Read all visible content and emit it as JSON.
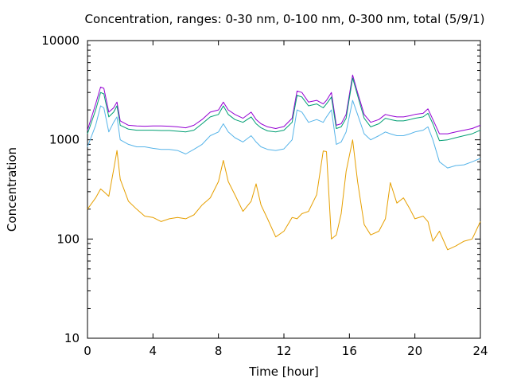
{
  "chart_data": {
    "type": "line",
    "title": "Concentration, ranges: 0-30 nm, 0-100 nm, 0-300 nm, total (5/9/1)",
    "xlabel": "Time [hour]",
    "ylabel": "Concentration",
    "xlim": [
      0,
      24
    ],
    "ylim": [
      10,
      10000
    ],
    "yscale": "log",
    "grid": false,
    "legend": "none",
    "x_ticks": [
      0,
      4,
      8,
      12,
      16,
      20,
      24
    ],
    "x_tick_labels": [
      "0",
      "4",
      "8",
      "12",
      "16",
      "20",
      "24"
    ],
    "y_ticks": [
      10,
      100,
      1000,
      10000
    ],
    "y_tick_labels": [
      "10",
      "100",
      "1000",
      "10000"
    ],
    "x": [
      0,
      0.5,
      0.8,
      1.0,
      1.3,
      1.6,
      1.8,
      2.0,
      2.5,
      3.0,
      3.5,
      4.0,
      4.5,
      5.0,
      5.5,
      6.0,
      6.5,
      7.0,
      7.5,
      8.0,
      8.3,
      8.6,
      9.0,
      9.5,
      10.0,
      10.3,
      10.6,
      11.0,
      11.5,
      12.0,
      12.5,
      12.8,
      13.1,
      13.5,
      14.0,
      14.4,
      14.6,
      14.9,
      15.2,
      15.5,
      15.8,
      16.2,
      16.5,
      16.9,
      17.3,
      17.8,
      18.2,
      18.5,
      18.9,
      19.3,
      19.7,
      20.0,
      20.5,
      20.8,
      21.1,
      21.5,
      22.0,
      22.5,
      23.0,
      23.5,
      24.0
    ],
    "series": [
      {
        "color": "#9400d3",
        "values": [
          1250,
          2300,
          3400,
          3300,
          1900,
          2100,
          2400,
          1550,
          1400,
          1380,
          1370,
          1380,
          1380,
          1370,
          1350,
          1320,
          1400,
          1600,
          1900,
          2000,
          2400,
          2000,
          1800,
          1650,
          1900,
          1600,
          1450,
          1350,
          1300,
          1360,
          1650,
          3100,
          3000,
          2400,
          2500,
          2300,
          2500,
          3000,
          1400,
          1450,
          1800,
          4500,
          3000,
          1800,
          1500,
          1600,
          1800,
          1750,
          1700,
          1700,
          1750,
          1800,
          1850,
          2050,
          1600,
          1150,
          1150,
          1200,
          1250,
          1300,
          1400
        ]
      },
      {
        "color": "#009e73",
        "values": [
          1150,
          2000,
          3000,
          2900,
          1700,
          1900,
          2200,
          1400,
          1280,
          1250,
          1250,
          1250,
          1240,
          1240,
          1220,
          1200,
          1250,
          1450,
          1700,
          1800,
          2200,
          1800,
          1600,
          1500,
          1700,
          1450,
          1320,
          1230,
          1200,
          1250,
          1500,
          2800,
          2700,
          2200,
          2300,
          2100,
          2300,
          2700,
          1300,
          1350,
          1650,
          4200,
          2800,
          1650,
          1350,
          1450,
          1650,
          1600,
          1550,
          1550,
          1600,
          1650,
          1700,
          1850,
          1450,
          980,
          1000,
          1050,
          1100,
          1150,
          1250
        ]
      },
      {
        "color": "#56b4e9",
        "values": [
          850,
          1400,
          2200,
          2100,
          1200,
          1500,
          1700,
          1000,
          900,
          850,
          850,
          820,
          800,
          800,
          780,
          720,
          800,
          900,
          1100,
          1200,
          1450,
          1200,
          1050,
          950,
          1100,
          950,
          850,
          800,
          780,
          810,
          1000,
          2000,
          1900,
          1500,
          1600,
          1500,
          1700,
          2000,
          900,
          950,
          1200,
          2500,
          1800,
          1150,
          1000,
          1100,
          1200,
          1150,
          1100,
          1100,
          1150,
          1200,
          1250,
          1350,
          1000,
          600,
          520,
          550,
          560,
          600,
          650
        ]
      },
      {
        "color": "#e69f00",
        "values": [
          200,
          260,
          320,
          300,
          270,
          500,
          780,
          400,
          240,
          200,
          170,
          165,
          150,
          160,
          165,
          160,
          175,
          220,
          260,
          380,
          620,
          380,
          280,
          190,
          240,
          360,
          220,
          160,
          105,
          120,
          165,
          160,
          180,
          190,
          280,
          770,
          760,
          100,
          110,
          180,
          480,
          1000,
          380,
          140,
          110,
          120,
          160,
          370,
          230,
          260,
          200,
          160,
          170,
          150,
          95,
          120,
          78,
          85,
          95,
          100,
          150
        ]
      }
    ]
  }
}
